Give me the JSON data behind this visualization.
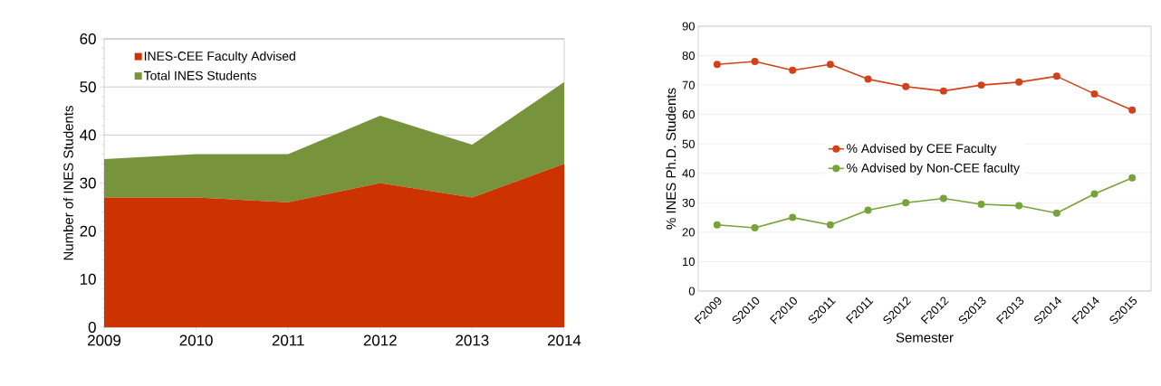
{
  "chart_data": [
    {
      "type": "area",
      "ylabel": "Number of INES Students",
      "x": [
        2009,
        2010,
        2011,
        2012,
        2013,
        2014
      ],
      "xlim": [
        2009,
        2014
      ],
      "xticks": [
        2009,
        2010,
        2011,
        2012,
        2013,
        2014
      ],
      "ylim": [
        0,
        60
      ],
      "yticks": [
        0,
        10,
        20,
        30,
        40,
        50,
        60
      ],
      "stacked": true,
      "grid": "y",
      "legend": "top left",
      "series": [
        {
          "name": "INES-CEE Faculty Advised",
          "color": "#cc3300",
          "values": [
            27,
            27,
            26,
            30,
            27,
            34
          ]
        },
        {
          "name": "Total INES Students",
          "color": "#77933c",
          "values": [
            8,
            9,
            10,
            14,
            11,
            17
          ]
        }
      ]
    },
    {
      "type": "line",
      "xlabel": "Semester",
      "ylabel": "% INES Ph.D. Students",
      "categories": [
        "F2009",
        "S2010",
        "F2010",
        "S2011",
        "F2011",
        "S2012",
        "F2012",
        "S2013",
        "F2013",
        "S2014",
        "F2014",
        "S2015"
      ],
      "ylim": [
        0,
        90
      ],
      "yticks": [
        0,
        10,
        20,
        30,
        40,
        50,
        60,
        70,
        80,
        90
      ],
      "grid": "y",
      "legend": "center",
      "marker": "circle",
      "line_style": "solid",
      "series": [
        {
          "name": "% Advised by CEE Faculty",
          "color": "#d2421a",
          "values": [
            77,
            78,
            75,
            77,
            72,
            69.5,
            68,
            70,
            71,
            73,
            67,
            61.5
          ]
        },
        {
          "name": "% Advised by Non-CEE faculty",
          "color": "#77a33a",
          "values": [
            22.5,
            21.5,
            25,
            22.5,
            27.5,
            30,
            31.5,
            29.5,
            29,
            26.5,
            33,
            38.5
          ]
        }
      ]
    }
  ]
}
